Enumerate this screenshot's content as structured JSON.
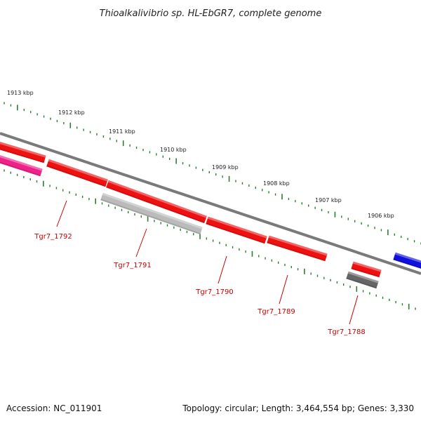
{
  "title": "Thioalkalivibrio sp. HL-EbGR7, complete genome",
  "footer": {
    "accession": "Accession: NC_011901",
    "summary": "Topology: circular; Length: 3,464,554 bp; Genes: 3,330"
  },
  "colors": {
    "backbone": "#7a7a7a",
    "outer_ticks": "#2e7d2e",
    "inner_ticks": "#2e7d2e",
    "label": "#cc0000",
    "gene_red": "#ee1111",
    "gene_pink": "#ee2288",
    "gene_lightgray": "#bbbbbb",
    "gene_darkgray": "#666666",
    "gene_blue": "#1111dd"
  },
  "scale_labels": [
    {
      "text": "1913 kbp"
    },
    {
      "text": "1912 kbp"
    },
    {
      "text": "1911 kbp"
    },
    {
      "text": "1910 kbp"
    },
    {
      "text": "1909 kbp"
    },
    {
      "text": "1908 kbp"
    },
    {
      "text": "1907 kbp"
    },
    {
      "text": "1906 kbp"
    }
  ],
  "genes": [
    {
      "name": "",
      "color": "gene_red",
      "track": "outer"
    },
    {
      "name": "",
      "color": "gene_pink",
      "track": "inner"
    },
    {
      "name": "",
      "color": "gene_red",
      "track": "outer"
    },
    {
      "name": "",
      "color": "gene_red",
      "track": "outer"
    },
    {
      "name": "",
      "color": "gene_lightgray",
      "track": "inner"
    },
    {
      "name": "",
      "color": "gene_red",
      "track": "outer"
    },
    {
      "name": "",
      "color": "gene_red",
      "track": "outer"
    },
    {
      "name": "",
      "color": "gene_red",
      "track": "inner"
    },
    {
      "name": "",
      "color": "gene_darkgray",
      "track": "inner"
    },
    {
      "name": "",
      "color": "gene_blue",
      "track": "outer"
    }
  ],
  "gene_labels": [
    {
      "text": "Tgr7_1792"
    },
    {
      "text": "Tgr7_1791"
    },
    {
      "text": "Tgr7_1790"
    },
    {
      "text": "Tgr7_1789"
    },
    {
      "text": "Tgr7_1788"
    }
  ]
}
